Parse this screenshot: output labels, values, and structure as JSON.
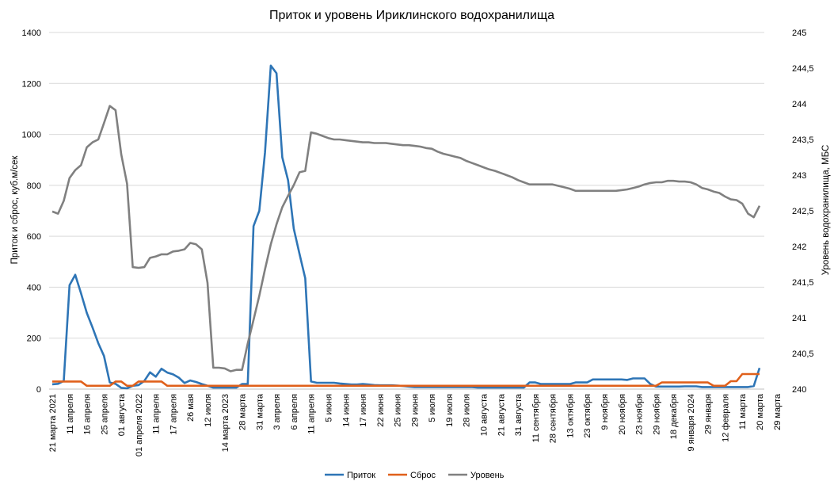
{
  "chart_data": {
    "type": "line",
    "title": "Приток и уровень Ириклинского водохранилища",
    "ylabel": "Приток и сброс, куб.м/сек",
    "y2label": "Уровень водохранилища, МБС",
    "ylim": [
      0,
      1400
    ],
    "yticks": [
      "0",
      "200",
      "400",
      "600",
      "800",
      "1000",
      "1200",
      "1400"
    ],
    "y2lim": [
      240,
      245
    ],
    "y2ticks": [
      "240",
      "240,5",
      "241",
      "241,5",
      "242",
      "242,5",
      "243",
      "243,5",
      "244",
      "244,5",
      "245"
    ],
    "grid": true,
    "legend_position": "bottom",
    "x_tick_interval": 3,
    "x_tick_labels": [
      "21 марта 2021",
      "11 апреля",
      "16 апреля",
      "25 апреля",
      "01 августа",
      "01 апреля 2022",
      "11 апреля",
      "17 апреля",
      "26 мая",
      "12 июля",
      "14 марта 2023",
      "28 марта",
      "31 марта",
      "3 апреля",
      "6 апреля",
      "11 апреля",
      "5 июня",
      "14 июня",
      "17 июня",
      "22 июня",
      "25 июня",
      "29 июня",
      "5 июля",
      "19 июля",
      "28 июля",
      "10 августа",
      "21 августа",
      "31 августа",
      "11 сентября",
      "28 сентября",
      "13 октября",
      "23 октября",
      "9 ноября",
      "20 ноября",
      "23 ноября",
      "29 ноября",
      "18 декабря",
      "9 января 2024",
      "29 января",
      "12 февраля",
      "11 марта",
      "20 марта",
      "29 марта"
    ],
    "series": [
      {
        "name": "Приток",
        "axis": "left",
        "color": "#2E75B6",
        "values": [
          19,
          21,
          32,
          408,
          449,
          376,
          299,
          242,
          180,
          130,
          26,
          21,
          5,
          3,
          13,
          16,
          32,
          66,
          49,
          80,
          65,
          58,
          45,
          24,
          34,
          28,
          20,
          13,
          6,
          6,
          6,
          6,
          6,
          20,
          20,
          640,
          700,
          930,
          1270,
          1240,
          910,
          820,
          630,
          530,
          435,
          30,
          25,
          25,
          25,
          25,
          22,
          20,
          18,
          18,
          20,
          18,
          16,
          15,
          15,
          15,
          14,
          12,
          10,
          8,
          8,
          8,
          8,
          8,
          8,
          8,
          8,
          8,
          8,
          8,
          6,
          6,
          6,
          6,
          6,
          6,
          6,
          6,
          6,
          26,
          26,
          20,
          20,
          20,
          20,
          20,
          20,
          26,
          26,
          26,
          38,
          38,
          38,
          38,
          38,
          38,
          36,
          42,
          42,
          42,
          20,
          10,
          10,
          10,
          10,
          10,
          11,
          11,
          11,
          8,
          8,
          8,
          8,
          8,
          8,
          8,
          8,
          8,
          12,
          83
        ]
      },
      {
        "name": "Сброс",
        "axis": "left",
        "color": "#E0601B",
        "values": [
          30,
          30,
          30,
          30,
          30,
          30,
          13,
          13,
          13,
          13,
          13,
          30,
          30,
          13,
          13,
          30,
          30,
          30,
          30,
          30,
          13,
          13,
          13,
          13,
          13,
          13,
          13,
          13,
          13,
          13,
          13,
          13,
          13,
          13,
          13,
          13,
          13,
          13,
          13,
          13,
          13,
          13,
          13,
          13,
          13,
          13,
          13,
          13,
          13,
          13,
          13,
          13,
          13,
          13,
          13,
          13,
          13,
          13,
          13,
          13,
          13,
          13,
          13,
          13,
          13,
          13,
          13,
          13,
          13,
          13,
          13,
          13,
          13,
          13,
          13,
          13,
          13,
          13,
          13,
          13,
          13,
          13,
          13,
          13,
          13,
          13,
          13,
          13,
          13,
          13,
          13,
          13,
          13,
          13,
          13,
          13,
          13,
          13,
          13,
          13,
          13,
          13,
          13,
          13,
          13,
          13,
          26,
          26,
          26,
          26,
          26,
          26,
          26,
          26,
          26,
          13,
          13,
          13,
          31,
          31,
          59,
          59,
          59,
          59
        ]
      },
      {
        "name": "Уровень",
        "axis": "right",
        "color": "#808080",
        "values": [
          242.49,
          242.46,
          242.64,
          242.96,
          243.07,
          243.14,
          243.39,
          243.46,
          243.5,
          243.73,
          243.97,
          243.91,
          243.29,
          242.88,
          241.71,
          241.7,
          241.71,
          241.84,
          241.86,
          241.89,
          241.89,
          241.93,
          241.94,
          241.96,
          242.05,
          242.03,
          241.96,
          241.49,
          240.3,
          240.3,
          240.29,
          240.25,
          240.27,
          240.27,
          240.64,
          240.97,
          241.31,
          241.68,
          242.03,
          242.31,
          242.55,
          242.71,
          242.86,
          243.04,
          243.06,
          243.6,
          243.58,
          243.55,
          243.52,
          243.5,
          243.5,
          243.49,
          243.48,
          243.47,
          243.46,
          243.46,
          243.45,
          243.45,
          243.45,
          243.44,
          243.43,
          243.42,
          243.42,
          243.41,
          243.4,
          243.38,
          243.37,
          243.33,
          243.3,
          243.28,
          243.26,
          243.24,
          243.2,
          243.17,
          243.14,
          243.11,
          243.08,
          243.06,
          243.03,
          243.0,
          242.97,
          242.93,
          242.9,
          242.87,
          242.87,
          242.87,
          242.87,
          242.87,
          242.85,
          242.83,
          242.81,
          242.78,
          242.78,
          242.78,
          242.78,
          242.78,
          242.78,
          242.78,
          242.78,
          242.79,
          242.8,
          242.82,
          242.84,
          242.87,
          242.89,
          242.9,
          242.9,
          242.92,
          242.92,
          242.91,
          242.91,
          242.9,
          242.87,
          242.82,
          242.8,
          242.77,
          242.75,
          242.7,
          242.66,
          242.65,
          242.6,
          242.46,
          242.41,
          242.57
        ]
      }
    ]
  }
}
